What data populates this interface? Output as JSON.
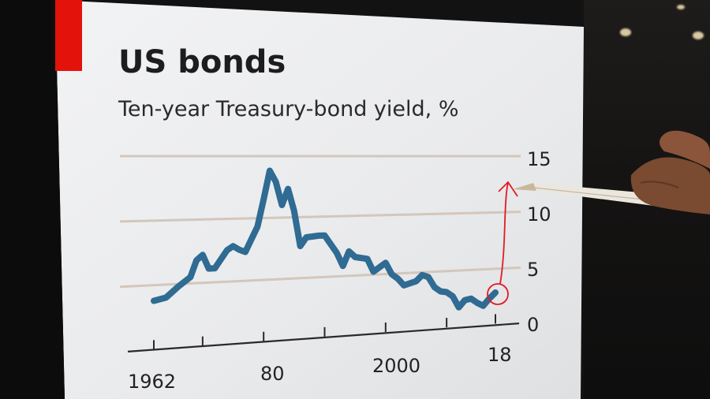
{
  "chart_data": {
    "type": "line",
    "title": "US bonds",
    "subtitle": "Ten-year Treasury-bond yield, %",
    "xlabel": "",
    "ylabel": "",
    "x_tick_labels": [
      "1962",
      "80",
      "2000",
      "18"
    ],
    "y_tick_labels": [
      "15",
      "10",
      "5",
      "0"
    ],
    "ylim": [
      0,
      15
    ],
    "xlim": [
      1962,
      2018
    ],
    "grid": true,
    "series": [
      {
        "color": "#2f6b92",
        "x": [
          1962,
          1964,
          1966,
          1968,
          1969,
          1970,
          1971,
          1972,
          1974,
          1975,
          1976,
          1977,
          1978,
          1979,
          1980,
          1981,
          1982,
          1983,
          1984,
          1985,
          1986,
          1987,
          1989,
          1990,
          1992,
          1993,
          1994,
          1995,
          1997,
          1998,
          2000,
          2001,
          2002,
          2003,
          2005,
          2006,
          2007,
          2008,
          2009,
          2010,
          2011,
          2012,
          2013,
          2014,
          2015,
          2016,
          2017,
          2018
        ],
        "values": [
          3.9,
          4.1,
          4.9,
          5.6,
          6.9,
          7.3,
          6.2,
          6.2,
          7.6,
          7.9,
          7.6,
          7.4,
          8.4,
          9.4,
          11.6,
          13.9,
          13.0,
          11.1,
          12.4,
          10.6,
          7.7,
          8.4,
          8.5,
          8.5,
          7.0,
          5.9,
          7.1,
          6.6,
          6.4,
          5.3,
          6.0,
          5.0,
          4.6,
          4.0,
          4.3,
          4.8,
          4.6,
          3.7,
          3.3,
          3.2,
          2.8,
          1.8,
          2.4,
          2.5,
          2.1,
          1.8,
          2.4,
          2.9
        ]
      }
    ],
    "annotation": {
      "type": "hand-drawn-circle-and-arrow",
      "color": "#e11b22",
      "target_x": 2018
    }
  },
  "scene": {
    "red_tag_color": "#e3120b",
    "pencil": "stylus-pointer"
  }
}
